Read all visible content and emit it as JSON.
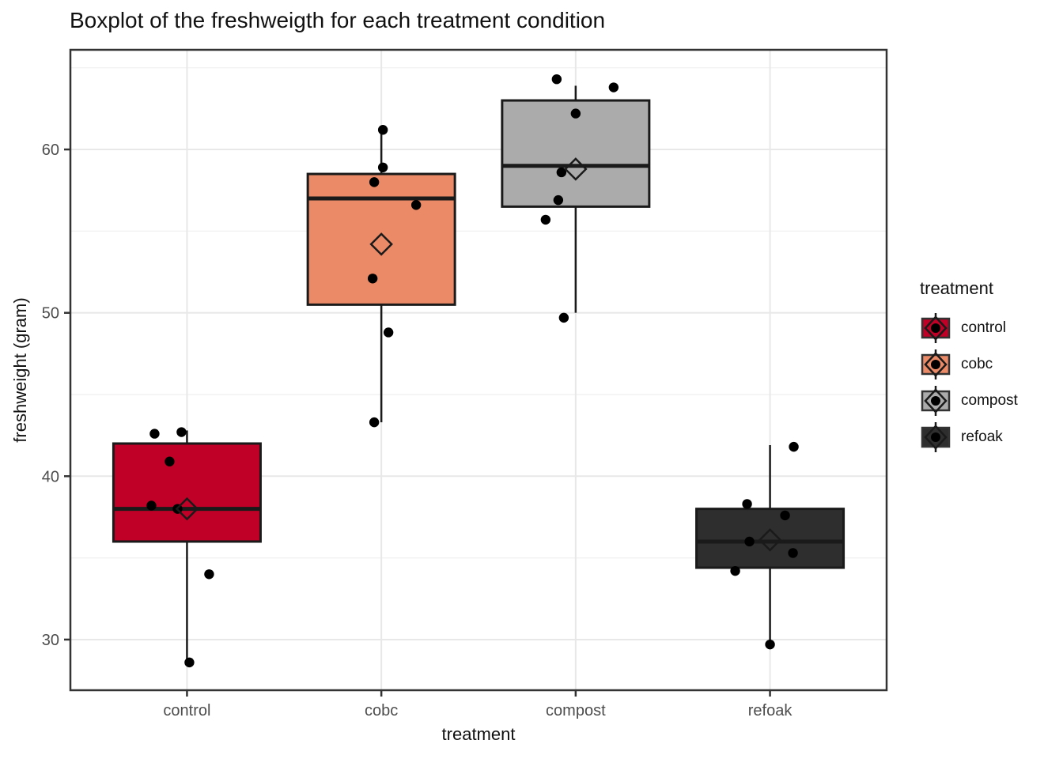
{
  "title": "Boxplot of the freshweigth for each treatment condition",
  "axes": {
    "x_title": "treatment",
    "y_title": "freshweight (gram)"
  },
  "legend": {
    "title": "treatment",
    "entries": [
      "control",
      "cobc",
      "compost",
      "refoak"
    ]
  },
  "style": {
    "box_stroke": "#1a1a1a",
    "panel_border": "#333333",
    "grid_major": "#e8e8e8",
    "grid_minor": "#f2f2f2",
    "tick_color": "#333333",
    "tick_label_color": "#4d4d4d",
    "point_color": "#000000",
    "background": "#ffffff"
  },
  "chart_data": {
    "type": "boxplot",
    "title": "Boxplot of the freshweigth for each treatment condition",
    "xlabel": "treatment",
    "ylabel": "freshweight (gram)",
    "categories": [
      "control",
      "cobc",
      "compost",
      "refoak"
    ],
    "ylim": [
      26.9,
      66.1
    ],
    "y_ticks_major": [
      30,
      40,
      50,
      60
    ],
    "y_ticks_minor": [
      35,
      45,
      55,
      65
    ],
    "grid": true,
    "legend_position": "right",
    "overlays": [
      "jittered_points",
      "mean_diamond"
    ],
    "series": [
      {
        "name": "control",
        "fill": "#c00026",
        "stats": {
          "whisker_low": 28.6,
          "q1": 36.0,
          "median": 38.0,
          "q3": 42.0,
          "whisker_high": 42.8
        },
        "mean": 38.0,
        "points": [
          {
            "dx": -41,
            "v": 42.6
          },
          {
            "dx": -7,
            "v": 42.7
          },
          {
            "dx": -22,
            "v": 40.9
          },
          {
            "dx": -45,
            "v": 38.2
          },
          {
            "dx": -12,
            "v": 38.0
          },
          {
            "dx": 28,
            "v": 34.0
          },
          {
            "dx": 3,
            "v": 28.6
          }
        ]
      },
      {
        "name": "cobc",
        "fill": "#eb8a67",
        "stats": {
          "whisker_low": 43.3,
          "q1": 50.5,
          "median": 57.0,
          "q3": 58.5,
          "whisker_high": 61.2
        },
        "mean": 54.2,
        "points": [
          {
            "dx": 2,
            "v": 61.2
          },
          {
            "dx": 2,
            "v": 58.9
          },
          {
            "dx": -9,
            "v": 58.0
          },
          {
            "dx": 44,
            "v": 56.6
          },
          {
            "dx": -11,
            "v": 52.1
          },
          {
            "dx": 9,
            "v": 48.8
          },
          {
            "dx": -9,
            "v": 43.3
          }
        ]
      },
      {
        "name": "compost",
        "fill": "#ababab",
        "stats": {
          "whisker_low": 50.0,
          "q1": 56.5,
          "median": 59.0,
          "q3": 63.0,
          "whisker_high": 63.9
        },
        "mean": 58.8,
        "points": [
          {
            "dx": -24,
            "v": 64.3
          },
          {
            "dx": 48,
            "v": 63.8
          },
          {
            "dx": 0,
            "v": 62.2
          },
          {
            "dx": -18,
            "v": 58.6
          },
          {
            "dx": -22,
            "v": 56.9
          },
          {
            "dx": -38,
            "v": 55.7
          },
          {
            "dx": -15,
            "v": 49.7
          }
        ]
      },
      {
        "name": "refoak",
        "fill": "#2e2e2e",
        "stats": {
          "whisker_low": 29.9,
          "q1": 34.4,
          "median": 36.0,
          "q3": 38.0,
          "whisker_high": 41.9
        },
        "mean": 36.1,
        "points": [
          {
            "dx": 30,
            "v": 41.8
          },
          {
            "dx": -29,
            "v": 38.3
          },
          {
            "dx": 19,
            "v": 37.6
          },
          {
            "dx": -26,
            "v": 36.0
          },
          {
            "dx": 29,
            "v": 35.3
          },
          {
            "dx": -44,
            "v": 34.2
          },
          {
            "dx": 0,
            "v": 29.7
          }
        ]
      }
    ]
  }
}
